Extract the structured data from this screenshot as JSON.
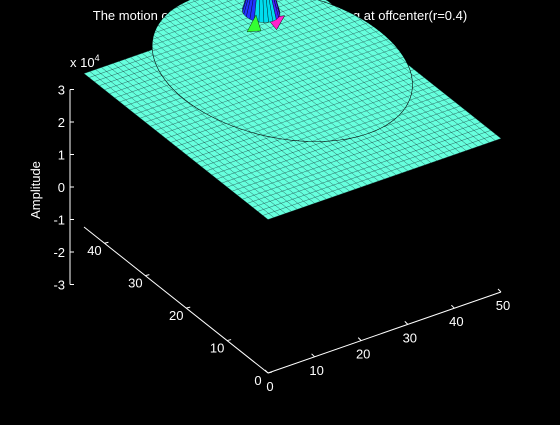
{
  "chart_data": {
    "type": "surface",
    "title": "The motion of vibrating drumhead when hitting at offcenter(r=0.4)",
    "zlabel": "Amplitude",
    "z_exponent_label": {
      "base": "x 10",
      "exp": "4"
    },
    "x_ticks": [
      "0",
      "10",
      "20",
      "30",
      "40",
      "50"
    ],
    "y_ticks": [
      "0",
      "10",
      "20",
      "30",
      "40"
    ],
    "z_ticks": [
      "-3",
      "-2",
      "-1",
      "0",
      "1",
      "2",
      "3"
    ],
    "xlim": [
      0,
      50
    ],
    "ylim": [
      0,
      45
    ],
    "zlim": [
      -3,
      3
    ],
    "z_scale": 10000,
    "grid": false,
    "surface": {
      "plane_level": -1.0,
      "disk_level": 0.0,
      "disk_center": [
        25,
        25
      ],
      "disk_radius": 21,
      "peak": {
        "x": 31,
        "y": 37,
        "value": 3.0
      },
      "trough": {
        "x": 33,
        "y": 36,
        "value": -0.4
      }
    },
    "colors": {
      "background": "#000000",
      "surface_top": "#66ffdd",
      "mesh": "#1a3a3a",
      "wall_green": "#33ff33",
      "wall_cyan": "#00ddee",
      "wall_blue": "#2233ff",
      "peak_blue": "#4422ff",
      "peak_magenta": "#ff22cc"
    }
  }
}
